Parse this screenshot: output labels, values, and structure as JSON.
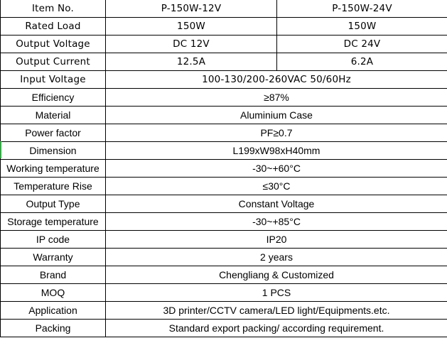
{
  "header": {
    "label": "Item No.",
    "models": [
      "P-150W-12V",
      "P-150W-24V"
    ]
  },
  "split_rows": [
    {
      "label": "Rated Load",
      "values": [
        "150W",
        "150W"
      ]
    },
    {
      "label": "Output Voltage",
      "values": [
        "DC 12V",
        "DC 24V"
      ]
    },
    {
      "label": "Output Current",
      "values": [
        "12.5A",
        "6.2A"
      ]
    }
  ],
  "rows": [
    {
      "label": "Input Voltage",
      "value": "100-130/200-260VAC 50/60Hz"
    },
    {
      "label": "Efficiency",
      "value": "≥87%"
    },
    {
      "label": "Material",
      "value": "Aluminium Case"
    },
    {
      "label": "Power factor",
      "value": "PF≥0.7"
    },
    {
      "label": "Dimension",
      "value": "L199xW98xH40mm"
    },
    {
      "label": "Working temperature",
      "value": "-30~+60°C"
    },
    {
      "label": "Temperature Rise",
      "value": "≤30°C"
    },
    {
      "label": "Output Type",
      "value": "Constant Voltage"
    },
    {
      "label": "Storage temperature",
      "value": "-30~+85°C"
    },
    {
      "label": "IP code",
      "value": "IP20"
    },
    {
      "label": "Warranty",
      "value": "2 years"
    },
    {
      "label": "Brand",
      "value": "Chengliang & Customized"
    },
    {
      "label": "MOQ",
      "value": "1 PCS"
    },
    {
      "label": "Application",
      "value": "3D printer/CCTV camera/LED light/Equipments.etc."
    },
    {
      "label": "Packing",
      "value": "Standard export packing/ according requirement."
    }
  ]
}
